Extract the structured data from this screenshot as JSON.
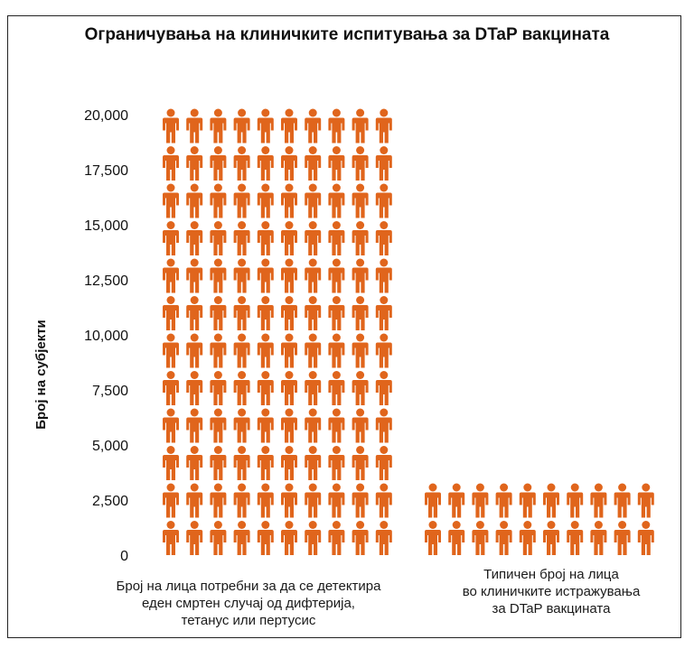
{
  "chart_data": {
    "type": "pictograph",
    "title": "Ограничувања на клиничките испитувања за DTaP вакцината",
    "ylabel": "Број на субјекти",
    "xlabel": "",
    "ylim": [
      0,
      20000
    ],
    "y_ticks": [
      "0",
      "2,500",
      "5,000",
      "7,500",
      "10,000",
      "12,500",
      "15,000",
      "17,500",
      "20,000"
    ],
    "y_tick_values": [
      0,
      2500,
      5000,
      7500,
      10000,
      12500,
      15000,
      17500,
      20000
    ],
    "icon": "person-icon",
    "icon_color": "#e0651c",
    "categories": [
      {
        "lines": [
          "Број на лица потребни за да се детектира",
          "еден смртен случај од дифтерија,",
          "тетанус или пертусис"
        ],
        "value": 20000,
        "icon_rows": 12,
        "icons_per_row": 10
      },
      {
        "lines": [
          "Типичен број на лица",
          "во клиничките истражувања",
          "за DTaP вакцината"
        ],
        "value": 2000,
        "icon_rows": 2,
        "icons_per_row": 10
      }
    ]
  }
}
